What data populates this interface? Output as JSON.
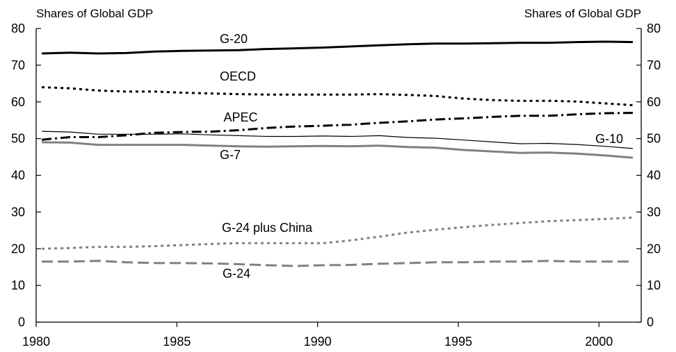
{
  "chart_data": {
    "type": "line",
    "left_axis_title": "Shares of Global GDP",
    "right_axis_title": "Shares of Global GDP",
    "xlim": [
      1980,
      2001.5
    ],
    "ylim": [
      0,
      80
    ],
    "x_ticks": [
      1980,
      1985,
      1990,
      1995,
      2000
    ],
    "y_ticks": [
      0,
      10,
      20,
      30,
      40,
      50,
      60,
      70,
      80
    ],
    "grid": false,
    "legend": "none (series labelled directly on chart)",
    "series": [
      {
        "name": "G-20",
        "color": "#000000",
        "style": "solid-thick",
        "x": [
          1980.2,
          1981.2,
          1982.2,
          1983.2,
          1984.2,
          1985.2,
          1986.2,
          1987.2,
          1988.2,
          1989.2,
          1990.2,
          1991.2,
          1992.2,
          1993.2,
          1994.2,
          1995.2,
          1996.2,
          1997.2,
          1998.2,
          1999.2,
          2000.2,
          2001.2
        ],
        "values": [
          73.2,
          73.4,
          73.2,
          73.3,
          73.7,
          73.9,
          74.0,
          74.1,
          74.4,
          74.6,
          74.8,
          75.1,
          75.4,
          75.7,
          75.9,
          75.9,
          76.0,
          76.1,
          76.1,
          76.3,
          76.4,
          76.3
        ]
      },
      {
        "name": "OECD",
        "color": "#000000",
        "style": "dotted",
        "x": [
          1980.2,
          1981.2,
          1982.2,
          1983.2,
          1984.2,
          1985.2,
          1986.2,
          1987.2,
          1988.2,
          1989.2,
          1990.2,
          1991.2,
          1992.2,
          1993.2,
          1994.2,
          1995.2,
          1996.2,
          1997.2,
          1998.2,
          1999.2,
          2000.2,
          2001.2
        ],
        "values": [
          64.0,
          63.7,
          63.1,
          62.8,
          62.8,
          62.5,
          62.3,
          62.1,
          62.0,
          62.0,
          62.0,
          62.0,
          62.1,
          61.9,
          61.6,
          60.9,
          60.5,
          60.3,
          60.3,
          60.1,
          59.6,
          59.1
        ]
      },
      {
        "name": "APEC",
        "color": "#000000",
        "style": "dash-dot",
        "x": [
          1980.2,
          1981.2,
          1982.2,
          1983.2,
          1984.2,
          1985.2,
          1986.2,
          1987.2,
          1988.2,
          1989.2,
          1990.2,
          1991.2,
          1992.2,
          1993.2,
          1994.2,
          1995.2,
          1996.2,
          1997.2,
          1998.2,
          1999.2,
          2000.2,
          2001.2
        ],
        "values": [
          49.7,
          50.4,
          50.4,
          50.9,
          51.6,
          51.8,
          51.9,
          52.3,
          52.9,
          53.3,
          53.5,
          53.8,
          54.3,
          54.7,
          55.2,
          55.5,
          55.9,
          56.2,
          56.2,
          56.6,
          56.9,
          57.0
        ]
      },
      {
        "name": "G-10",
        "color": "#000000",
        "style": "solid-thin",
        "x": [
          1980.2,
          1981.2,
          1982.2,
          1983.2,
          1984.2,
          1985.2,
          1986.2,
          1987.2,
          1988.2,
          1989.2,
          1990.2,
          1991.2,
          1992.2,
          1993.2,
          1994.2,
          1995.2,
          1996.2,
          1997.2,
          1998.2,
          1999.2,
          2000.2,
          2001.2
        ],
        "values": [
          52.0,
          51.8,
          51.2,
          51.2,
          51.2,
          51.3,
          51.0,
          50.8,
          50.6,
          50.6,
          50.7,
          50.6,
          50.8,
          50.3,
          50.1,
          49.6,
          49.1,
          48.6,
          48.7,
          48.4,
          47.9,
          47.3
        ]
      },
      {
        "name": "G-7",
        "color": "#808080",
        "style": "solid-thick",
        "x": [
          1980.2,
          1981.2,
          1982.2,
          1983.2,
          1984.2,
          1985.2,
          1986.2,
          1987.2,
          1988.2,
          1989.2,
          1990.2,
          1991.2,
          1992.2,
          1993.2,
          1994.2,
          1995.2,
          1996.2,
          1997.2,
          1998.2,
          1999.2,
          2000.2,
          2001.2
        ],
        "values": [
          49.0,
          48.9,
          48.3,
          48.3,
          48.3,
          48.3,
          48.1,
          47.9,
          47.8,
          47.9,
          48.0,
          47.9,
          48.1,
          47.7,
          47.5,
          46.9,
          46.5,
          46.1,
          46.2,
          45.9,
          45.4,
          44.8
        ]
      },
      {
        "name": "G-24 plus China",
        "color": "#808080",
        "style": "dotted",
        "x": [
          1980.2,
          1981.2,
          1982.2,
          1983.2,
          1984.2,
          1985.2,
          1986.2,
          1987.2,
          1988.2,
          1989.2,
          1990.2,
          1991.2,
          1992.2,
          1993.2,
          1994.2,
          1995.2,
          1996.2,
          1997.2,
          1998.2,
          1999.2,
          2000.2,
          2001.2
        ],
        "values": [
          20.0,
          20.2,
          20.5,
          20.5,
          20.7,
          21.0,
          21.3,
          21.5,
          21.5,
          21.5,
          21.5,
          22.3,
          23.3,
          24.4,
          25.2,
          25.9,
          26.5,
          27.0,
          27.5,
          27.8,
          28.1,
          28.5
        ]
      },
      {
        "name": "G-24",
        "color": "#808080",
        "style": "dashed",
        "x": [
          1980.2,
          1981.2,
          1982.2,
          1983.2,
          1984.2,
          1985.2,
          1986.2,
          1987.2,
          1988.2,
          1989.2,
          1990.2,
          1991.2,
          1992.2,
          1993.2,
          1994.2,
          1995.2,
          1996.2,
          1997.2,
          1998.2,
          1999.2,
          2000.2,
          2001.2
        ],
        "values": [
          16.5,
          16.5,
          16.7,
          16.3,
          16.1,
          16.1,
          16.0,
          15.8,
          15.5,
          15.3,
          15.5,
          15.6,
          15.9,
          16.1,
          16.3,
          16.3,
          16.5,
          16.5,
          16.7,
          16.5,
          16.5,
          16.5
        ]
      }
    ]
  }
}
